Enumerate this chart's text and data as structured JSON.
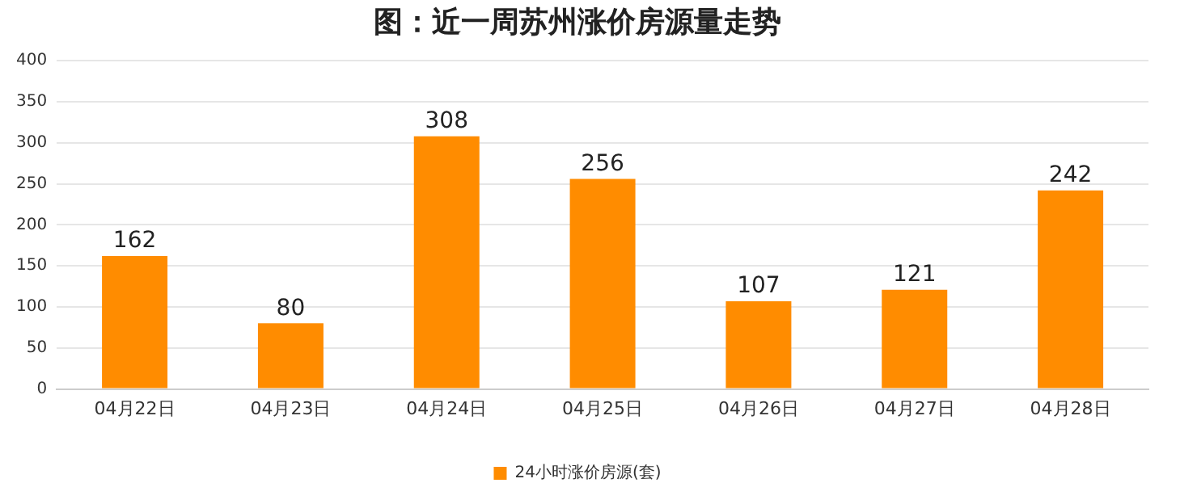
{
  "chart_data": {
    "type": "bar",
    "title": "图：近一周苏州涨价房源量走势",
    "categories": [
      "04月22日",
      "04月23日",
      "04月24日",
      "04月25日",
      "04月26日",
      "04月27日",
      "04月28日"
    ],
    "series": [
      {
        "name": "24小时涨价房源(套)",
        "color": "#ff8c00",
        "values": [
          162,
          80,
          308,
          256,
          107,
          121,
          242
        ]
      }
    ],
    "ylim": [
      0,
      400
    ],
    "yticks": [
      0,
      50,
      100,
      150,
      200,
      250,
      300,
      350,
      400
    ],
    "grid": "y",
    "legend": "bottom",
    "data_labels": true
  }
}
